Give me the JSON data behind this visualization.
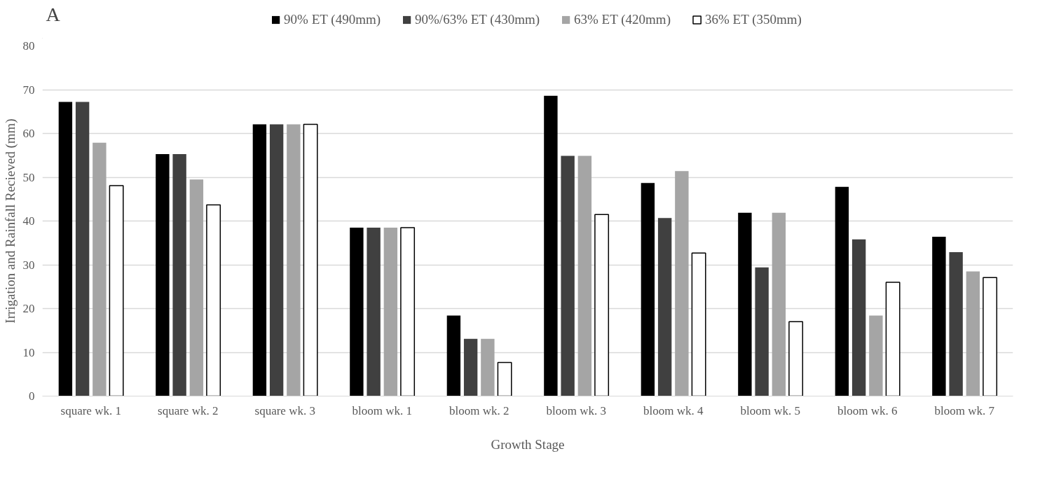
{
  "chart_data": {
    "type": "bar",
    "xlabel": "Growth Stage",
    "ylabel": "Irrigation and Rainfall Recieved (mm)",
    "annotations": [
      "A"
    ],
    "categories": [
      "square wk. 1",
      "square wk. 2",
      "square wk. 3",
      "bloom wk. 1",
      "bloom wk. 2",
      "bloom wk. 3",
      "bloom wk. 4",
      "bloom wk. 5",
      "bloom wk. 6",
      "bloom wk. 7"
    ],
    "series": [
      {
        "name": "90% ET (490mm)",
        "color": "#000000",
        "values": [
          67.2,
          55.3,
          62.1,
          38.5,
          18.4,
          68.6,
          48.7,
          41.9,
          47.8,
          36.4
        ]
      },
      {
        "name": "90%/63% ET (430mm)",
        "color": "#404040",
        "values": [
          67.2,
          55.3,
          62.1,
          38.5,
          13.1,
          54.9,
          40.7,
          29.4,
          35.8,
          32.9
        ]
      },
      {
        "name": "63% ET (420mm)",
        "color": "#a5a5a5",
        "values": [
          57.9,
          49.5,
          62.1,
          38.5,
          13.1,
          54.9,
          51.4,
          41.9,
          18.4,
          28.5
        ]
      },
      {
        "name": "36% ET (350mm)",
        "color": "#ffffff",
        "values": [
          48.1,
          43.7,
          62.1,
          38.5,
          7.7,
          41.5,
          32.7,
          17.0,
          26.0,
          27.1
        ]
      }
    ],
    "ylim": [
      0,
      80
    ],
    "yticks": [
      0,
      10,
      20,
      30,
      40,
      50,
      60,
      70,
      80
    ],
    "grid": "y",
    "legend": "top"
  }
}
